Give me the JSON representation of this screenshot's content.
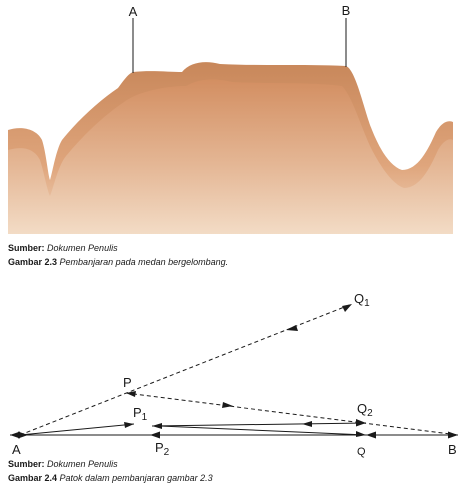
{
  "figure1": {
    "label_a": "A",
    "label_b": "B",
    "source_label": "Sumber:",
    "source_text": "Dokumen Penulis",
    "caption_label": "Gambar 2.3",
    "caption_text": "Pembanjaran pada medan bergelombang.",
    "colors": {
      "terrain_dark": "#c17a4e",
      "terrain_mid": "#d99468",
      "terrain_light": "#f2d9c2"
    }
  },
  "figure2": {
    "points": {
      "A": "A",
      "B": "B",
      "Q": "Q",
      "P": "P",
      "P1_main": "P",
      "P1_sub": "1",
      "P2_main": "P",
      "P2_sub": "2",
      "Q1_main": "Q",
      "Q1_sub": "1",
      "Q2_main": "Q",
      "Q2_sub": "2"
    },
    "source_label": "Sumber:",
    "source_text": "Dokumen Penulis",
    "caption_label": "Gambar 2.4",
    "caption_text": "Patok dalam pembanjaran gambar 2.3"
  }
}
